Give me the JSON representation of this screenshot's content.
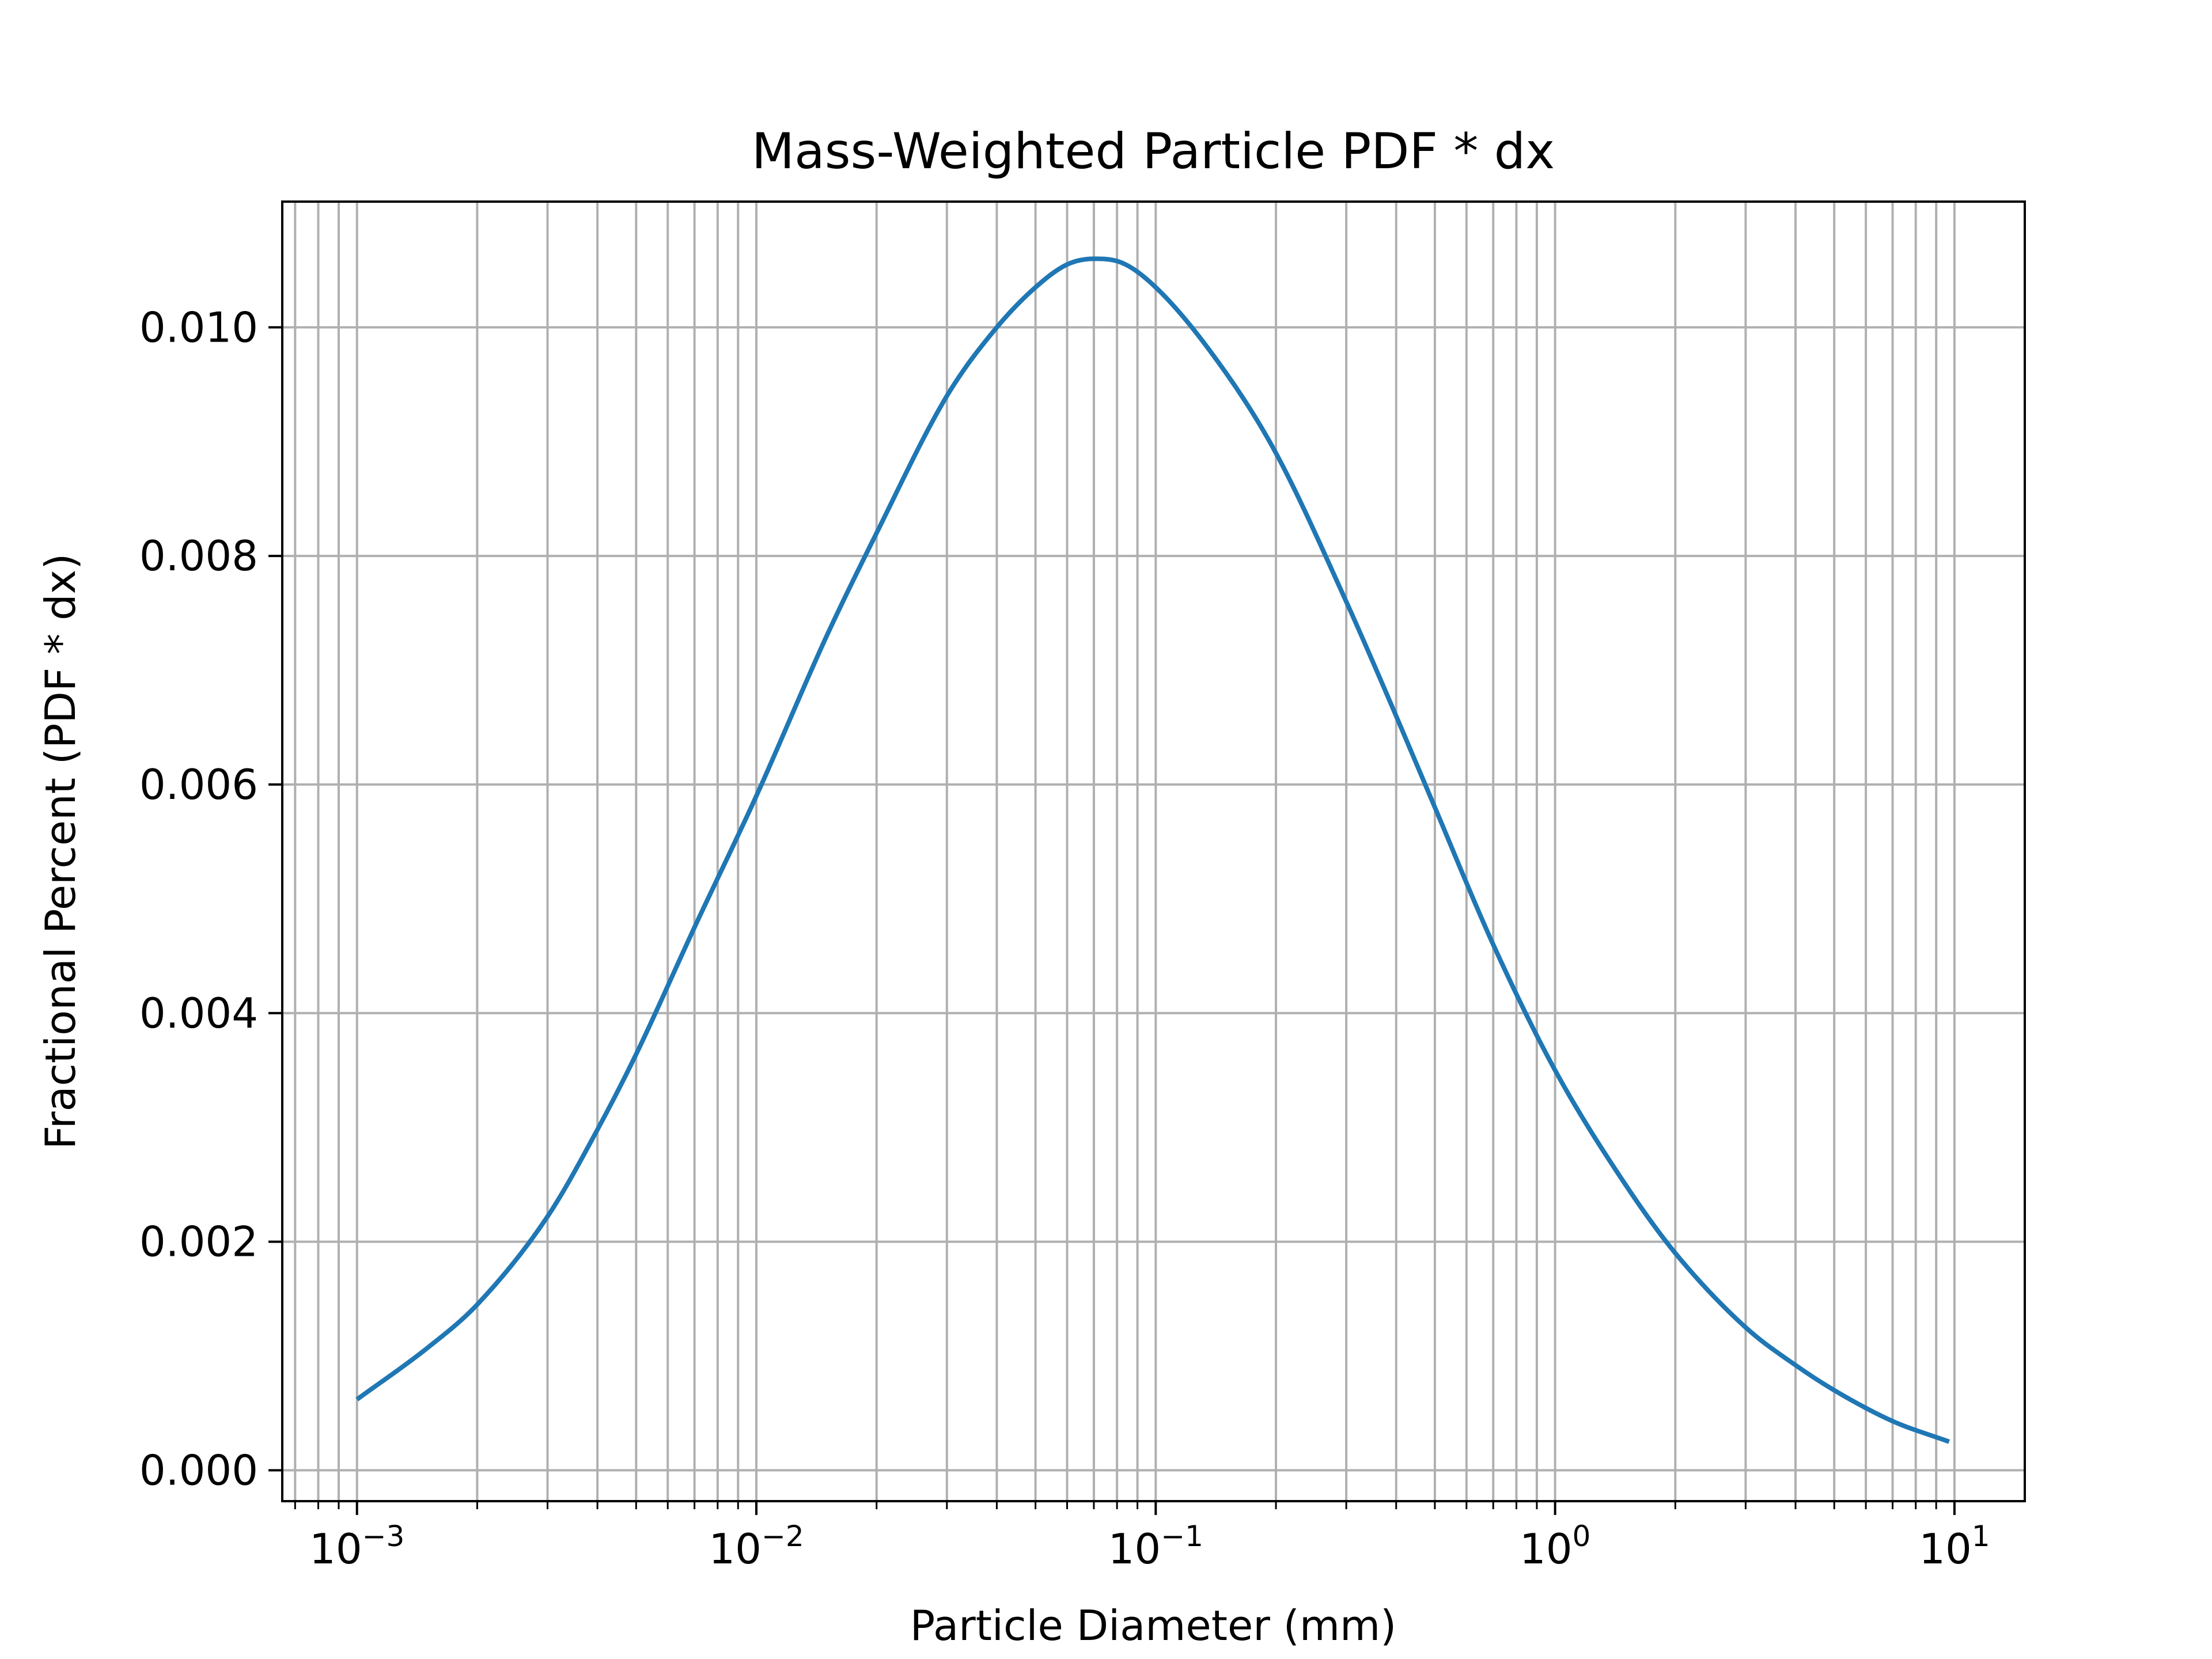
{
  "chart_data": {
    "type": "line",
    "title": "Mass-Weighted Particle PDF * dx",
    "xlabel": "Particle Diameter (mm)",
    "ylabel": "Fractional Percent (PDF * dx)",
    "xscale": "log",
    "xlim": [
      0.00065,
      15
    ],
    "ylim": [
      -0.00027,
      0.0111
    ],
    "grid": true,
    "grid_which": "both",
    "line_color": "#1f77b4",
    "grid_color": "#b0b0b0",
    "x_ticks": [
      {
        "value": 0.001,
        "base": "10",
        "exp": "−3"
      },
      {
        "value": 0.01,
        "base": "10",
        "exp": "−2"
      },
      {
        "value": 0.1,
        "base": "10",
        "exp": "−1"
      },
      {
        "value": 1,
        "base": "10",
        "exp": "0"
      },
      {
        "value": 10,
        "base": "10",
        "exp": "1"
      }
    ],
    "y_ticks": [
      {
        "value": 0.0,
        "label": "0.000"
      },
      {
        "value": 0.002,
        "label": "0.002"
      },
      {
        "value": 0.004,
        "label": "0.004"
      },
      {
        "value": 0.006,
        "label": "0.006"
      },
      {
        "value": 0.008,
        "label": "0.008"
      },
      {
        "value": 0.01,
        "label": "0.010"
      }
    ],
    "series": [
      {
        "x": [
          0.001,
          0.0015,
          0.002,
          0.003,
          0.004,
          0.005,
          0.007,
          0.01,
          0.015,
          0.02,
          0.03,
          0.04,
          0.05,
          0.06,
          0.07,
          0.08,
          0.1,
          0.15,
          0.2,
          0.3,
          0.4,
          0.5,
          0.7,
          1.0,
          1.5,
          2.0,
          3.0,
          4.0,
          5.0,
          7.0,
          9.7
        ],
        "y": [
          0.00062,
          0.00107,
          0.00145,
          0.00222,
          0.00298,
          0.00364,
          0.00475,
          0.0059,
          0.0073,
          0.0082,
          0.0094,
          0.01,
          0.01035,
          0.01055,
          0.0106,
          0.01058,
          0.01035,
          0.0096,
          0.0089,
          0.0076,
          0.0066,
          0.0058,
          0.0046,
          0.0035,
          0.0025,
          0.0019,
          0.00125,
          0.00092,
          0.0007,
          0.00043,
          0.00025
        ]
      }
    ]
  }
}
